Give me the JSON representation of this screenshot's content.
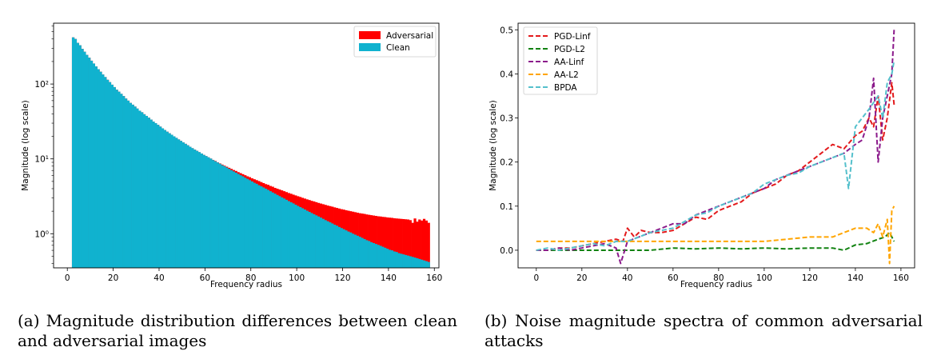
{
  "captions": {
    "a": "(a) Magnitude distribution differences between clean and adversarial images",
    "b": "(b) Noise magnitude spectra of common adversarial attacks"
  },
  "chart_data": [
    {
      "type": "bar",
      "panel": "a",
      "xlabel": "Frequency radius",
      "ylabel": "Magnitude (log scale)",
      "y_scale": "log",
      "xlim": [
        -6,
        162
      ],
      "ylim": [
        0.35,
        650
      ],
      "x_ticks": [
        0,
        20,
        40,
        60,
        80,
        100,
        120,
        140,
        160
      ],
      "y_ticks": [
        1,
        10,
        100
      ],
      "y_tick_labels": [
        "10⁰",
        "10¹",
        "10²"
      ],
      "legend_position": "top-right",
      "bin_start": 2,
      "bin_width": 1,
      "series": [
        {
          "name": "Adversarial",
          "color": "#ff0000",
          "values": [
            420,
            400,
            355,
            330,
            295,
            270,
            245,
            225,
            205,
            188,
            172,
            158,
            146,
            134,
            124,
            114,
            106,
            98,
            91,
            84,
            79,
            74,
            69,
            64,
            60,
            56,
            53,
            50,
            47,
            44,
            42,
            39.5,
            37.5,
            35.5,
            33.5,
            31.5,
            30,
            28.5,
            27,
            25.6,
            24.3,
            23.1,
            22,
            21,
            20,
            19.1,
            18.2,
            17.4,
            16.6,
            15.9,
            15.2,
            14.5,
            13.9,
            13.3,
            12.8,
            12.3,
            11.8,
            11.3,
            10.9,
            10.5,
            10.1,
            9.7,
            9.4,
            9.0,
            8.7,
            8.4,
            8.1,
            7.85,
            7.6,
            7.35,
            7.1,
            6.9,
            6.65,
            6.45,
            6.25,
            6.05,
            5.85,
            5.7,
            5.5,
            5.35,
            5.2,
            5.05,
            4.9,
            4.75,
            4.6,
            4.5,
            4.35,
            4.25,
            4.1,
            4.0,
            3.9,
            3.8,
            3.7,
            3.6,
            3.5,
            3.42,
            3.33,
            3.25,
            3.17,
            3.1,
            3.02,
            2.95,
            2.88,
            2.82,
            2.75,
            2.7,
            2.64,
            2.58,
            2.53,
            2.48,
            2.43,
            2.38,
            2.34,
            2.3,
            2.25,
            2.21,
            2.17,
            2.13,
            2.1,
            2.06,
            2.03,
            2.0,
            1.97,
            1.94,
            1.91,
            1.88,
            1.86,
            1.84,
            1.81,
            1.79,
            1.77,
            1.75,
            1.73,
            1.71,
            1.7,
            1.68,
            1.67,
            1.65,
            1.64,
            1.63,
            1.61,
            1.6,
            1.59,
            1.58,
            1.57,
            1.56,
            1.55,
            1.52,
            1.4,
            1.6,
            1.45,
            1.55,
            1.5,
            1.58,
            1.5,
            1.4
          ]
        },
        {
          "name": "Clean",
          "color": "#10b2cf",
          "values": [
            420,
            400,
            355,
            330,
            295,
            270,
            245,
            225,
            205,
            188,
            172,
            158,
            146,
            134,
            124,
            114,
            106,
            98,
            91,
            84,
            79,
            74,
            69,
            64,
            60,
            56,
            53,
            50,
            47,
            44,
            42,
            39.5,
            37.5,
            35.5,
            33.5,
            31.5,
            30,
            28.5,
            27,
            25.6,
            24.3,
            23.1,
            22,
            21,
            20,
            19.1,
            18.2,
            17.4,
            16.6,
            15.9,
            15.2,
            14.5,
            13.9,
            13.3,
            12.8,
            12.3,
            11.8,
            11.3,
            10.9,
            10.5,
            10.1,
            9.65,
            9.3,
            8.95,
            8.6,
            8.25,
            7.95,
            7.65,
            7.35,
            7.05,
            6.8,
            6.55,
            6.3,
            6.05,
            5.85,
            5.6,
            5.4,
            5.2,
            5.0,
            4.8,
            4.65,
            4.45,
            4.3,
            4.15,
            4.0,
            3.85,
            3.7,
            3.56,
            3.43,
            3.3,
            3.18,
            3.06,
            2.95,
            2.84,
            2.73,
            2.63,
            2.54,
            2.44,
            2.35,
            2.27,
            2.19,
            2.11,
            2.03,
            1.96,
            1.89,
            1.82,
            1.76,
            1.7,
            1.64,
            1.58,
            1.52,
            1.47,
            1.42,
            1.37,
            1.32,
            1.28,
            1.23,
            1.19,
            1.15,
            1.11,
            1.07,
            1.04,
            1.0,
            0.97,
            0.94,
            0.91,
            0.88,
            0.85,
            0.82,
            0.8,
            0.77,
            0.75,
            0.73,
            0.71,
            0.69,
            0.67,
            0.65,
            0.63,
            0.61,
            0.6,
            0.58,
            0.57,
            0.55,
            0.54,
            0.53,
            0.52,
            0.51,
            0.5,
            0.49,
            0.48,
            0.47,
            0.46,
            0.45,
            0.44,
            0.43,
            0.42
          ]
        }
      ]
    },
    {
      "type": "line",
      "panel": "b",
      "xlabel": "Frequency radius",
      "ylabel": "Magnitude (log scale)",
      "xlim": [
        -8,
        166
      ],
      "ylim": [
        -0.04,
        0.515
      ],
      "x_ticks": [
        0,
        20,
        40,
        60,
        80,
        100,
        120,
        140,
        160
      ],
      "y_ticks": [
        0.0,
        0.1,
        0.2,
        0.3,
        0.4,
        0.5
      ],
      "y_tick_labels": [
        "0.0",
        "0.1",
        "0.2",
        "0.3",
        "0.4",
        "0.5"
      ],
      "legend_position": "top-left",
      "line_style": "dashed",
      "series": [
        {
          "name": "PGD-Linf",
          "color": "#e31a1c",
          "x": [
            0,
            5,
            10,
            15,
            20,
            25,
            30,
            35,
            38,
            40,
            43,
            46,
            50,
            55,
            60,
            65,
            70,
            75,
            80,
            85,
            90,
            95,
            100,
            105,
            110,
            115,
            120,
            125,
            130,
            135,
            140,
            143,
            146,
            148,
            150,
            152,
            154,
            156,
            157
          ],
          "y": [
            0.0,
            0.0,
            0.005,
            0.005,
            0.01,
            0.015,
            0.02,
            0.025,
            0.02,
            0.05,
            0.03,
            0.045,
            0.04,
            0.04,
            0.045,
            0.06,
            0.075,
            0.07,
            0.09,
            0.1,
            0.11,
            0.13,
            0.14,
            0.15,
            0.17,
            0.18,
            0.2,
            0.22,
            0.24,
            0.23,
            0.26,
            0.27,
            0.3,
            0.28,
            0.35,
            0.25,
            0.3,
            0.38,
            0.33
          ]
        },
        {
          "name": "PGD-L2",
          "color": "#118211",
          "x": [
            0,
            10,
            20,
            30,
            40,
            50,
            60,
            70,
            80,
            90,
            100,
            110,
            120,
            130,
            135,
            140,
            145,
            150,
            153,
            155,
            157
          ],
          "y": [
            0.0,
            0.0,
            0.0,
            0.0,
            0.0,
            0.0,
            0.005,
            0.003,
            0.005,
            0.003,
            0.005,
            0.003,
            0.005,
            0.005,
            0.0,
            0.012,
            0.015,
            0.025,
            0.03,
            0.04,
            0.02
          ]
        },
        {
          "name": "AA-Linf",
          "color": "#8b1a8b",
          "x": [
            0,
            5,
            10,
            15,
            20,
            25,
            30,
            35,
            37,
            40,
            45,
            50,
            55,
            60,
            65,
            70,
            75,
            80,
            85,
            90,
            95,
            100,
            105,
            110,
            115,
            120,
            125,
            130,
            135,
            140,
            143,
            146,
            148,
            150,
            152,
            154,
            156,
            157
          ],
          "y": [
            0.0,
            0.0,
            0.005,
            0.0,
            0.005,
            0.01,
            0.015,
            0.005,
            -0.03,
            0.02,
            0.03,
            0.04,
            0.05,
            0.06,
            0.06,
            0.08,
            0.09,
            0.1,
            0.11,
            0.12,
            0.13,
            0.14,
            0.16,
            0.17,
            0.18,
            0.19,
            0.2,
            0.21,
            0.22,
            0.24,
            0.25,
            0.3,
            0.39,
            0.2,
            0.3,
            0.35,
            0.4,
            0.5
          ]
        },
        {
          "name": "AA-L2",
          "color": "#ffa500",
          "x": [
            0,
            10,
            20,
            30,
            40,
            50,
            60,
            70,
            80,
            90,
            100,
            110,
            120,
            130,
            140,
            145,
            148,
            150,
            152,
            154,
            155,
            156,
            157
          ],
          "y": [
            0.02,
            0.02,
            0.02,
            0.02,
            0.02,
            0.02,
            0.02,
            0.02,
            0.02,
            0.02,
            0.02,
            0.025,
            0.03,
            0.03,
            0.05,
            0.05,
            0.04,
            0.06,
            0.03,
            0.07,
            -0.03,
            0.09,
            0.1
          ]
        },
        {
          "name": "BPDA",
          "color": "#55c0cc",
          "x": [
            0,
            5,
            10,
            15,
            20,
            25,
            30,
            35,
            40,
            45,
            50,
            55,
            60,
            65,
            70,
            75,
            80,
            85,
            90,
            95,
            100,
            105,
            110,
            115,
            120,
            125,
            130,
            135,
            137,
            140,
            143,
            146,
            150,
            152,
            154,
            156,
            157
          ],
          "y": [
            0.0,
            0.005,
            0.0,
            0.005,
            0.01,
            0.015,
            0.01,
            0.02,
            0.02,
            0.03,
            0.04,
            0.045,
            0.05,
            0.065,
            0.08,
            0.085,
            0.1,
            0.11,
            0.12,
            0.13,
            0.15,
            0.16,
            0.17,
            0.175,
            0.19,
            0.2,
            0.21,
            0.22,
            0.14,
            0.28,
            0.3,
            0.32,
            0.35,
            0.3,
            0.38,
            0.4,
            0.43
          ]
        }
      ]
    }
  ]
}
